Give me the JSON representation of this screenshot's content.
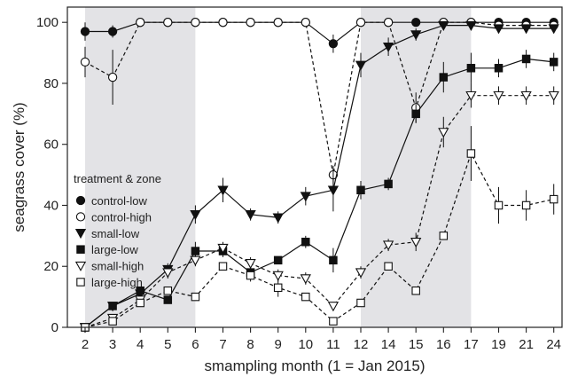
{
  "chart_data": {
    "type": "line",
    "xlabel": "smampling month (1 = Jan 2015)",
    "ylabel": "seagrass cover (%)",
    "categories": [
      "2",
      "3",
      "4",
      "5",
      "6",
      "7",
      "8",
      "9",
      "10",
      "11",
      "12",
      "14",
      "15",
      "16",
      "17",
      "19",
      "21",
      "24"
    ],
    "ylim": [
      0,
      105
    ],
    "yticks": [
      0,
      20,
      40,
      60,
      80,
      100
    ],
    "shaded_ranges": [
      [
        "2",
        "6"
      ],
      [
        "12",
        "17"
      ]
    ],
    "shade_color": "#e3e3e6",
    "legend": {
      "title": "treatment & zone",
      "placement": "left-middle"
    },
    "series": [
      {
        "name": "control-low",
        "marker": "circle",
        "fill": "filled",
        "line": "solid",
        "values": [
          97,
          97,
          100,
          100,
          100,
          100,
          100,
          100,
          100,
          93,
          100,
          100,
          100,
          100,
          100,
          100,
          100,
          100
        ],
        "errors": [
          3,
          2,
          0,
          0,
          0,
          0,
          0,
          0,
          0,
          3,
          0,
          0,
          0,
          0,
          0,
          0,
          0,
          0
        ]
      },
      {
        "name": "control-high",
        "marker": "circle",
        "fill": "open",
        "line": "dashed",
        "values": [
          87,
          82,
          100,
          100,
          100,
          100,
          100,
          100,
          100,
          50,
          100,
          100,
          72,
          100,
          100,
          99,
          99,
          99
        ],
        "errors": [
          5,
          9,
          0,
          0,
          0,
          0,
          0,
          0,
          0,
          3,
          0,
          0,
          5,
          0,
          0,
          0,
          0,
          0
        ]
      },
      {
        "name": "small-low",
        "marker": "triangle-down",
        "fill": "filled",
        "line": "solid",
        "values": [
          0,
          7,
          11,
          19,
          37,
          45,
          37,
          36,
          43,
          45,
          86,
          92,
          96,
          99,
          99,
          98,
          98,
          98
        ],
        "errors": [
          0,
          1,
          1,
          2,
          3,
          4,
          2,
          2,
          3,
          7,
          4,
          3,
          2,
          1,
          1,
          1,
          1,
          1
        ]
      },
      {
        "name": "large-low",
        "marker": "square",
        "fill": "filled",
        "line": "solid",
        "values": [
          0,
          7,
          12,
          9,
          25,
          25,
          18,
          22,
          28,
          22,
          45,
          47,
          70,
          82,
          85,
          85,
          88,
          87
        ],
        "errors": [
          0,
          1,
          1,
          1,
          3,
          2,
          2,
          1,
          2,
          4,
          3,
          2,
          3,
          5,
          5,
          3,
          3,
          3
        ]
      },
      {
        "name": "small-high",
        "marker": "triangle-down",
        "fill": "open",
        "line": "dashed",
        "values": [
          0,
          3,
          9,
          18,
          22,
          26,
          21,
          17,
          16,
          7,
          18,
          27,
          28,
          64,
          76,
          76,
          76,
          76
        ],
        "errors": [
          0,
          1,
          1,
          2,
          2,
          2,
          2,
          2,
          2,
          1,
          2,
          2,
          3,
          5,
          4,
          3,
          3,
          3
        ]
      },
      {
        "name": "large-high",
        "marker": "square",
        "fill": "open",
        "line": "dashed",
        "values": [
          0,
          2,
          8,
          12,
          10,
          20,
          17,
          13,
          10,
          2,
          8,
          20,
          12,
          30,
          57,
          40,
          40,
          42
        ],
        "errors": [
          0,
          1,
          1,
          1,
          1,
          1,
          2,
          3,
          1,
          1,
          1,
          1,
          1,
          1,
          9,
          6,
          5,
          5
        ]
      }
    ]
  }
}
